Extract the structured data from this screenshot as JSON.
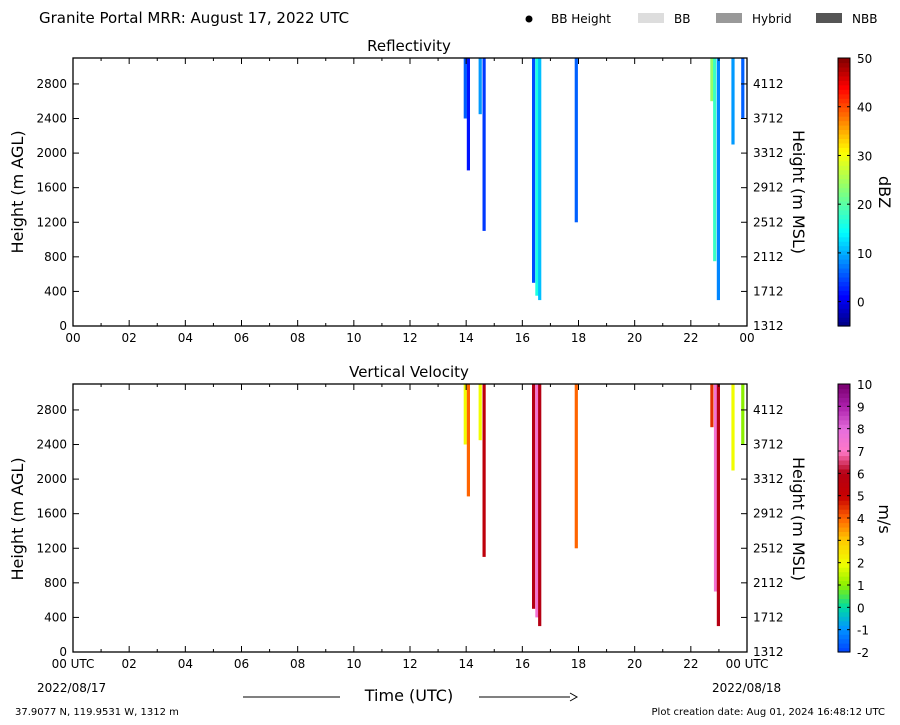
{
  "header": {
    "title": "Granite Portal MRR:  August 17, 2022 UTC",
    "legend": [
      {
        "label": "BB Height",
        "symbol": "dot",
        "color": "#000000"
      },
      {
        "label": "BB",
        "symbol": "rect",
        "color": "#dddddd"
      },
      {
        "label": "Hybrid",
        "symbol": "rect",
        "color": "#999999"
      },
      {
        "label": "NBB",
        "symbol": "rect",
        "color": "#555555"
      }
    ]
  },
  "footer": {
    "x_title": "Time (UTC)",
    "start_date": "2022/08/17",
    "end_date": "2022/08/18",
    "location": "37.9077 N, 119.9531 W, 1312 m",
    "creation": "Plot creation date: Aug 01, 2024 16:48:12 UTC"
  },
  "chart_data": [
    {
      "type": "heatmap",
      "title": "Reflectivity",
      "ylabel": "Height (m AGL)",
      "ylabel_right": "Height (m MSL)",
      "colorbar_label": "dBZ",
      "x_ticks": [
        "00",
        "02",
        "04",
        "06",
        "08",
        "10",
        "12",
        "14",
        "16",
        "18",
        "20",
        "22",
        "00"
      ],
      "xlim": [
        0,
        24
      ],
      "ylim": [
        0,
        3100
      ],
      "y_ticks": [
        0,
        400,
        800,
        1200,
        1600,
        2000,
        2400,
        2800
      ],
      "y_ticks_right": [
        "1312",
        "1712",
        "2112",
        "2512",
        "2912",
        "3312",
        "3712",
        "4112"
      ],
      "colorbar_ticks": [
        "0",
        "10",
        "20",
        "30",
        "40",
        "50"
      ],
      "colorbar_range": [
        -5,
        50
      ],
      "segments": [
        {
          "t": 13.97,
          "ybot": 2400,
          "val": 6
        },
        {
          "t": 14.08,
          "ybot": 1800,
          "val": 2
        },
        {
          "t": 14.5,
          "ybot": 2450,
          "val": 9
        },
        {
          "t": 14.64,
          "ybot": 1100,
          "val": 4
        },
        {
          "t": 16.4,
          "ybot": 500,
          "val": 5
        },
        {
          "t": 16.52,
          "ybot": 350,
          "val": 16
        },
        {
          "t": 16.62,
          "ybot": 300,
          "val": 11
        },
        {
          "t": 17.92,
          "ybot": 1200,
          "val": 6
        },
        {
          "t": 22.75,
          "ybot": 2600,
          "val": 24
        },
        {
          "t": 22.85,
          "ybot": 750,
          "val": 18
        },
        {
          "t": 22.98,
          "ybot": 300,
          "val": 8
        },
        {
          "t": 23.5,
          "ybot": 2100,
          "val": 9
        },
        {
          "t": 23.85,
          "ybot": 2400,
          "val": 6
        }
      ]
    },
    {
      "type": "heatmap",
      "title": "Vertical Velocity",
      "ylabel": "Height (m AGL)",
      "ylabel_right": "Height (m MSL)",
      "colorbar_label": "m/s",
      "x_ticks": [
        "00 UTC",
        "02",
        "04",
        "06",
        "08",
        "10",
        "12",
        "14",
        "16",
        "18",
        "20",
        "22",
        "00 UTC"
      ],
      "xlim": [
        0,
        24
      ],
      "ylim": [
        0,
        3100
      ],
      "y_ticks": [
        0,
        400,
        800,
        1200,
        1600,
        2000,
        2400,
        2800
      ],
      "y_ticks_right": [
        "1312",
        "1712",
        "2112",
        "2512",
        "2912",
        "3312",
        "3712",
        "4112"
      ],
      "colorbar_ticks": [
        "-2",
        "-1",
        "0",
        "1",
        "2",
        "3",
        "4",
        "5",
        "6",
        "7",
        "8",
        "9",
        "10"
      ],
      "colorbar_range": [
        -2,
        10
      ],
      "segments": [
        {
          "t": 13.97,
          "ybot": 2400,
          "val": 2
        },
        {
          "t": 14.08,
          "ybot": 1800,
          "val": 4
        },
        {
          "t": 14.5,
          "ybot": 2450,
          "val": 2
        },
        {
          "t": 14.64,
          "ybot": 1100,
          "val": 5.5
        },
        {
          "t": 16.4,
          "ybot": 500,
          "val": 6
        },
        {
          "t": 16.52,
          "ybot": 400,
          "val": 7.5
        },
        {
          "t": 16.62,
          "ybot": 300,
          "val": 6
        },
        {
          "t": 17.92,
          "ybot": 1200,
          "val": 4
        },
        {
          "t": 22.75,
          "ybot": 2600,
          "val": 4.5
        },
        {
          "t": 22.88,
          "ybot": 700,
          "val": 7.5
        },
        {
          "t": 22.98,
          "ybot": 300,
          "val": 6
        },
        {
          "t": 23.5,
          "ybot": 2100,
          "val": 2
        },
        {
          "t": 23.85,
          "ybot": 2400,
          "val": 1
        }
      ]
    }
  ]
}
